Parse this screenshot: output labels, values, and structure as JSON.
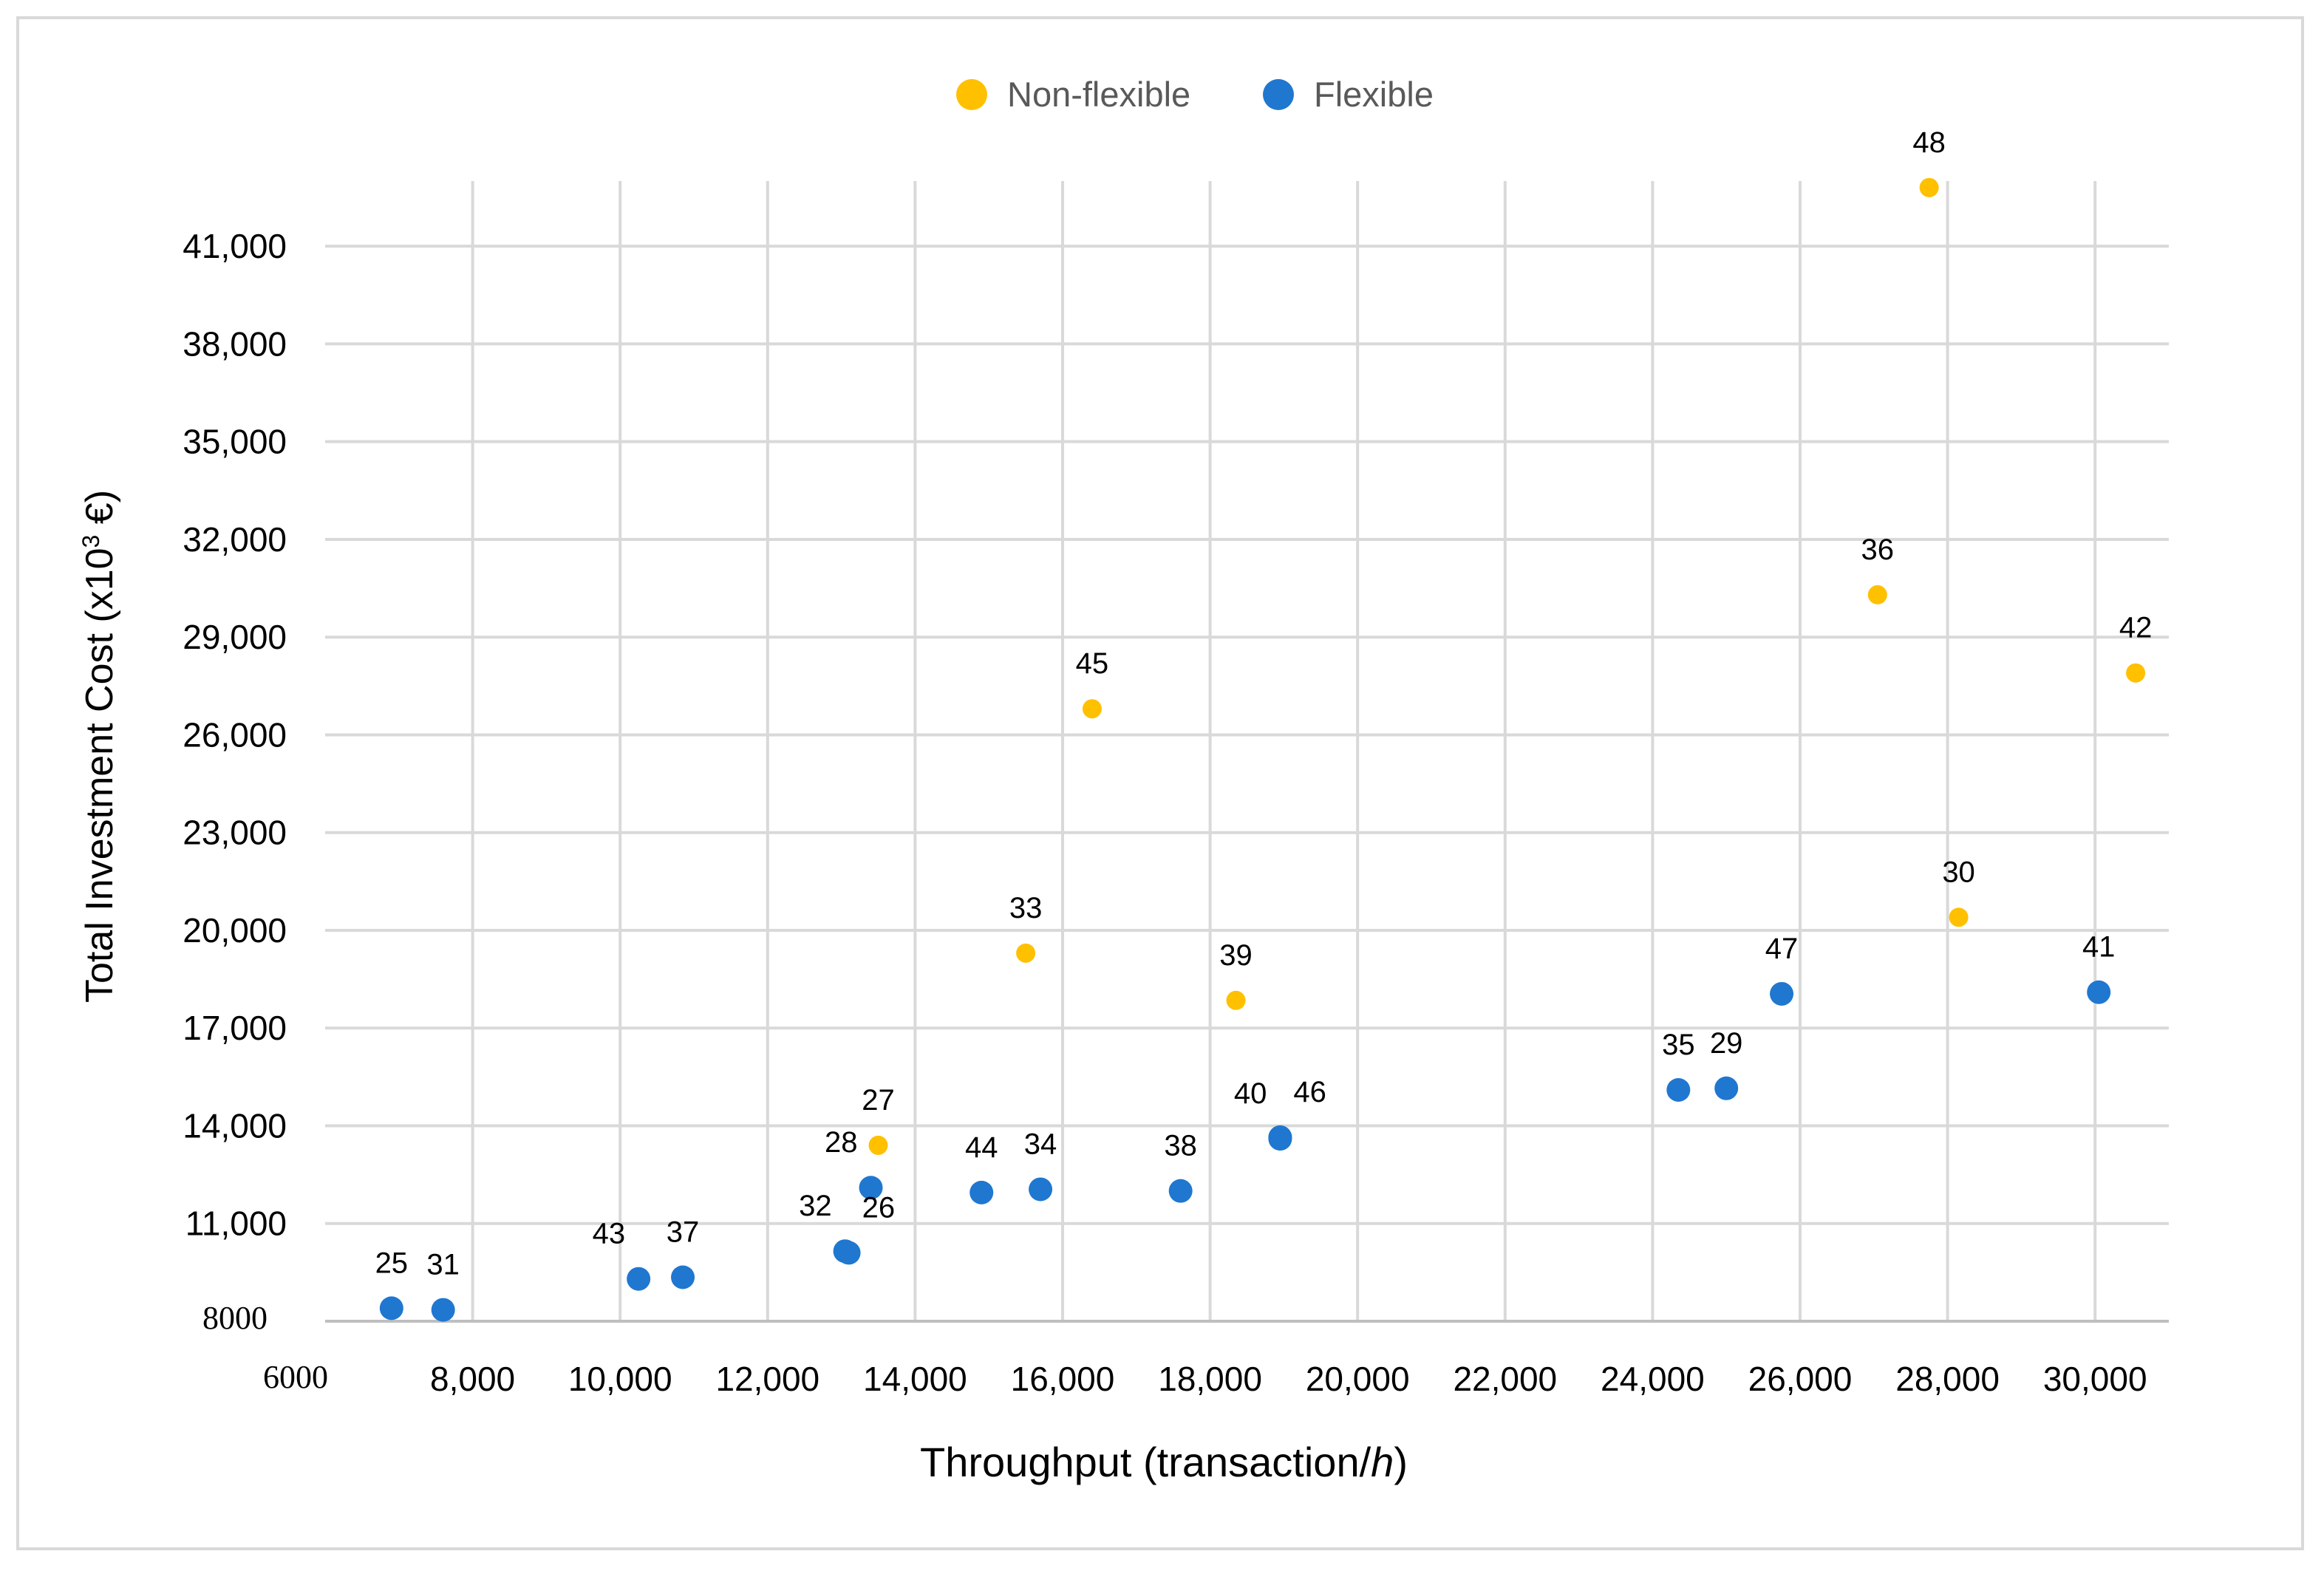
{
  "chart_data": {
    "type": "scatter",
    "title": "",
    "xlabel": "Throughput (transaction/h)",
    "xlabel_main": "Throughput (transaction/",
    "xlabel_italic": "h",
    "xlabel_close": ")",
    "ylabel": "Total Investment Cost  (x10³ €)",
    "ylabel_main": "Total Investment Cost  (x10",
    "ylabel_sup": "3",
    "ylabel_unit": " €)",
    "xlim": [
      6000,
      31000
    ],
    "ylim": [
      8000,
      43000
    ],
    "x_ticks": [
      {
        "value": 6000,
        "label": "6000"
      },
      {
        "value": 8000,
        "label": "8,000"
      },
      {
        "value": 10000,
        "label": "10,000"
      },
      {
        "value": 12000,
        "label": "12,000"
      },
      {
        "value": 14000,
        "label": "14,000"
      },
      {
        "value": 16000,
        "label": "16,000"
      },
      {
        "value": 18000,
        "label": "18,000"
      },
      {
        "value": 20000,
        "label": "20,000"
      },
      {
        "value": 22000,
        "label": "22,000"
      },
      {
        "value": 24000,
        "label": "24,000"
      },
      {
        "value": 26000,
        "label": "26,000"
      },
      {
        "value": 28000,
        "label": "28,000"
      },
      {
        "value": 30000,
        "label": "30,000"
      }
    ],
    "y_ticks": [
      {
        "value": 8000,
        "label": "8000"
      },
      {
        "value": 11000,
        "label": "11,000"
      },
      {
        "value": 14000,
        "label": "14,000"
      },
      {
        "value": 17000,
        "label": "17,000"
      },
      {
        "value": 20000,
        "label": "20,000"
      },
      {
        "value": 23000,
        "label": "23,000"
      },
      {
        "value": 26000,
        "label": "26,000"
      },
      {
        "value": 29000,
        "label": "29,000"
      },
      {
        "value": 32000,
        "label": "32,000"
      },
      {
        "value": 35000,
        "label": "35,000"
      },
      {
        "value": 38000,
        "label": "38,000"
      },
      {
        "value": 41000,
        "label": "41,000"
      }
    ],
    "grid": true,
    "legend_position": "top-center",
    "series": [
      {
        "name": "Non-flexible",
        "color": "#FFC000",
        "marker": "small",
        "points": [
          {
            "x": 13500,
            "y": 13400,
            "label": "27",
            "label_pos": "above"
          },
          {
            "x": 15500,
            "y": 19300,
            "label": "33",
            "label_pos": "above"
          },
          {
            "x": 16400,
            "y": 26800,
            "label": "45",
            "label_pos": "above"
          },
          {
            "x": 18350,
            "y": 17850,
            "label": "39",
            "label_pos": "above"
          },
          {
            "x": 27050,
            "y": 30300,
            "label": "36",
            "label_pos": "above"
          },
          {
            "x": 27750,
            "y": 42800,
            "label": "48",
            "label_pos": "above"
          },
          {
            "x": 28150,
            "y": 20400,
            "label": "30",
            "label_pos": "above"
          },
          {
            "x": 30550,
            "y": 27900,
            "label": "42",
            "label_pos": "above"
          }
        ]
      },
      {
        "name": "Flexible",
        "color": "#1F77D0",
        "marker": "large",
        "points": [
          {
            "x": 6900,
            "y": 8400,
            "label": "25",
            "label_pos": "above"
          },
          {
            "x": 7600,
            "y": 8350,
            "label": "31",
            "label_pos": "above"
          },
          {
            "x": 10250,
            "y": 9300,
            "label": "43",
            "label_pos": "above-left"
          },
          {
            "x": 10850,
            "y": 9350,
            "label": "37",
            "label_pos": "above"
          },
          {
            "x": 13050,
            "y": 10150,
            "label": "32",
            "label_pos": "above-left"
          },
          {
            "x": 13100,
            "y": 10100,
            "label": "26",
            "label_pos": "above-right"
          },
          {
            "x": 13400,
            "y": 12100,
            "label": "28",
            "label_pos": "above-left"
          },
          {
            "x": 14900,
            "y": 11950,
            "label": "44",
            "label_pos": "above"
          },
          {
            "x": 15700,
            "y": 12050,
            "label": "34",
            "label_pos": "above"
          },
          {
            "x": 17600,
            "y": 12000,
            "label": "38",
            "label_pos": "above"
          },
          {
            "x": 18950,
            "y": 13600,
            "label": "40",
            "label_pos": "above-left"
          },
          {
            "x": 18950,
            "y": 13650,
            "label": "46",
            "label_pos": "above-right"
          },
          {
            "x": 24350,
            "y": 15100,
            "label": "35",
            "label_pos": "above"
          },
          {
            "x": 25000,
            "y": 15150,
            "label": "29",
            "label_pos": "above"
          },
          {
            "x": 25750,
            "y": 18050,
            "label": "47",
            "label_pos": "above"
          },
          {
            "x": 30050,
            "y": 18100,
            "label": "41",
            "label_pos": "above"
          }
        ]
      }
    ]
  }
}
